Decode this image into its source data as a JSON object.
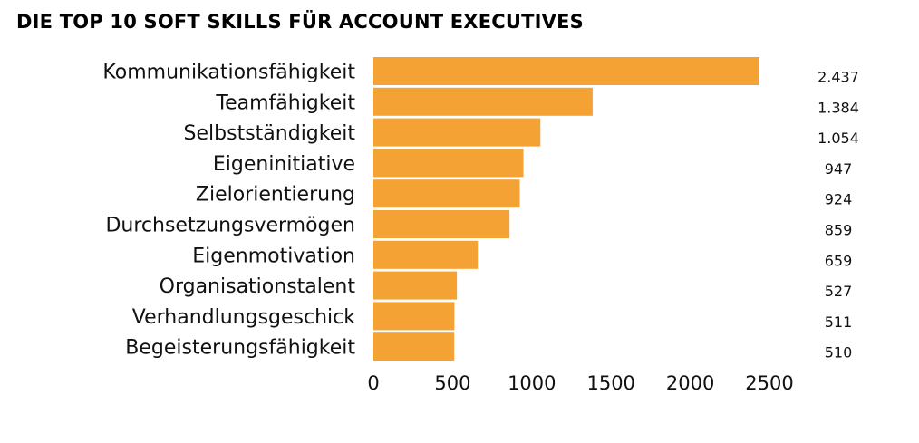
{
  "chart_data": {
    "type": "bar",
    "orientation": "horizontal",
    "title": "DIE TOP 10 SOFT SKILLS FÜR ACCOUNT EXECUTIVES",
    "xlabel": "",
    "ylabel": "",
    "categories": [
      "Kommunikationsfähigkeit",
      "Teamfähigkeit",
      "Selbstständigkeit",
      "Eigeninitiative",
      "Zielorientierung",
      "Durchsetzungsvermögen",
      "Eigenmotivation",
      "Organisationstalent",
      "Verhandlungsgeschick",
      "Begeisterungsfähigkeit"
    ],
    "values": [
      2437,
      1384,
      1054,
      947,
      924,
      859,
      659,
      527,
      511,
      510
    ],
    "value_labels": [
      "2.437",
      "1.384",
      "1.054",
      "947",
      "924",
      "859",
      "659",
      "527",
      "511",
      "510"
    ],
    "xlim": [
      0,
      2500
    ],
    "x_ticks": [
      0,
      500,
      1000,
      1500,
      2000,
      2500
    ],
    "x_tick_labels": [
      "0",
      "500",
      "1000",
      "1500",
      "2000",
      "2500"
    ],
    "grid": false,
    "legend": "none",
    "bar_color": "#F5A235"
  }
}
